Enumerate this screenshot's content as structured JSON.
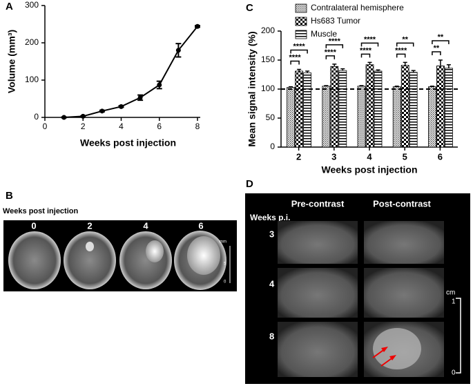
{
  "chart_data": [
    {
      "type": "line",
      "panel_label": "A",
      "x": [
        1,
        2,
        3,
        4,
        5,
        6,
        7,
        8
      ],
      "values": [
        0,
        3,
        17,
        29,
        53,
        87,
        180,
        244
      ],
      "errors": [
        1,
        1,
        2,
        2,
        7,
        10,
        18,
        2
      ],
      "color": "#000000",
      "xlim": [
        0,
        8
      ],
      "xticks": [
        0,
        2,
        4,
        6,
        8
      ],
      "ylim": [
        0,
        300
      ],
      "yticks": [
        0,
        100,
        200,
        300
      ],
      "xlabel": "Weeks post injection",
      "ylabel": "Volume (mm³)"
    },
    {
      "type": "bar",
      "panel_label": "C",
      "categories": [
        "2",
        "3",
        "4",
        "5",
        "6"
      ],
      "series": [
        {
          "name": "Contralateral hemisphere",
          "pattern": "dots",
          "values": [
            103,
            105,
            105,
            104,
            104
          ],
          "errors": [
            1,
            1,
            1,
            1,
            1
          ]
        },
        {
          "name": "Hs683 Tumor",
          "pattern": "checker",
          "values": [
            131,
            139,
            142,
            141,
            140
          ],
          "errors": [
            3,
            4,
            4,
            5,
            10
          ]
        },
        {
          "name": "Muscle",
          "pattern": "stripes",
          "values": [
            128,
            132,
            131,
            129,
            136
          ],
          "errors": [
            3,
            3,
            2,
            3,
            6
          ]
        }
      ],
      "significance": [
        [
          "****",
          "****"
        ],
        [
          "****",
          "****"
        ],
        [
          "****",
          "****"
        ],
        [
          "****",
          "**"
        ],
        [
          "**",
          "**"
        ]
      ],
      "reference_line": 100,
      "ylim": [
        0,
        200
      ],
      "yticks": [
        0,
        50,
        100,
        150,
        200
      ],
      "xlabel": "Weeks post injection",
      "ylabel": "Mean signal intensity (%)"
    }
  ],
  "panel_b": {
    "label": "B",
    "caption": "Weeks post injection",
    "weeks": [
      "0",
      "2",
      "4",
      "6"
    ],
    "scale_unit": "mm",
    "scale_ticks": [
      "5",
      "0"
    ]
  },
  "panel_d": {
    "label": "D",
    "columns": [
      "Pre-contrast",
      "Post-contrast"
    ],
    "row_header": "Weeks p.i.",
    "rows": [
      "3",
      "4",
      "8"
    ],
    "scale_unit": "cm",
    "scale_ticks": [
      "1",
      "0"
    ]
  }
}
